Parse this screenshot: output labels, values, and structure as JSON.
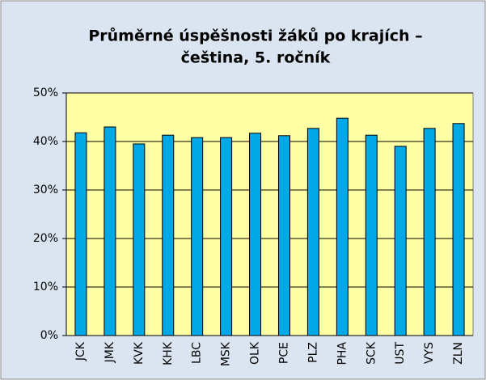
{
  "chart_data": {
    "type": "bar",
    "title": [
      "Průměrné úspěšnosti žáků po krajích –",
      "čeština, 5. ročník"
    ],
    "categories": [
      "JCK",
      "JMK",
      "KVK",
      "KHK",
      "LBC",
      "MSK",
      "OLK",
      "PCE",
      "PLZ",
      "PHA",
      "SCK",
      "UST",
      "VYS",
      "ZLN"
    ],
    "values": [
      41.8,
      43,
      39.5,
      41.3,
      40.8,
      40.8,
      41.7,
      41.2,
      42.7,
      44.8,
      41.3,
      39,
      42.7,
      43.7
    ],
    "color": "#00a8e6",
    "ylim": [
      0,
      50
    ],
    "yticks": [
      {
        "value": 0,
        "label": "0%"
      },
      {
        "value": 10,
        "label": "10%"
      },
      {
        "value": 20,
        "label": "20%"
      },
      {
        "value": 30,
        "label": "30%"
      },
      {
        "value": 40,
        "label": "40%"
      },
      {
        "value": 50,
        "label": "50%"
      }
    ],
    "grid": true
  }
}
